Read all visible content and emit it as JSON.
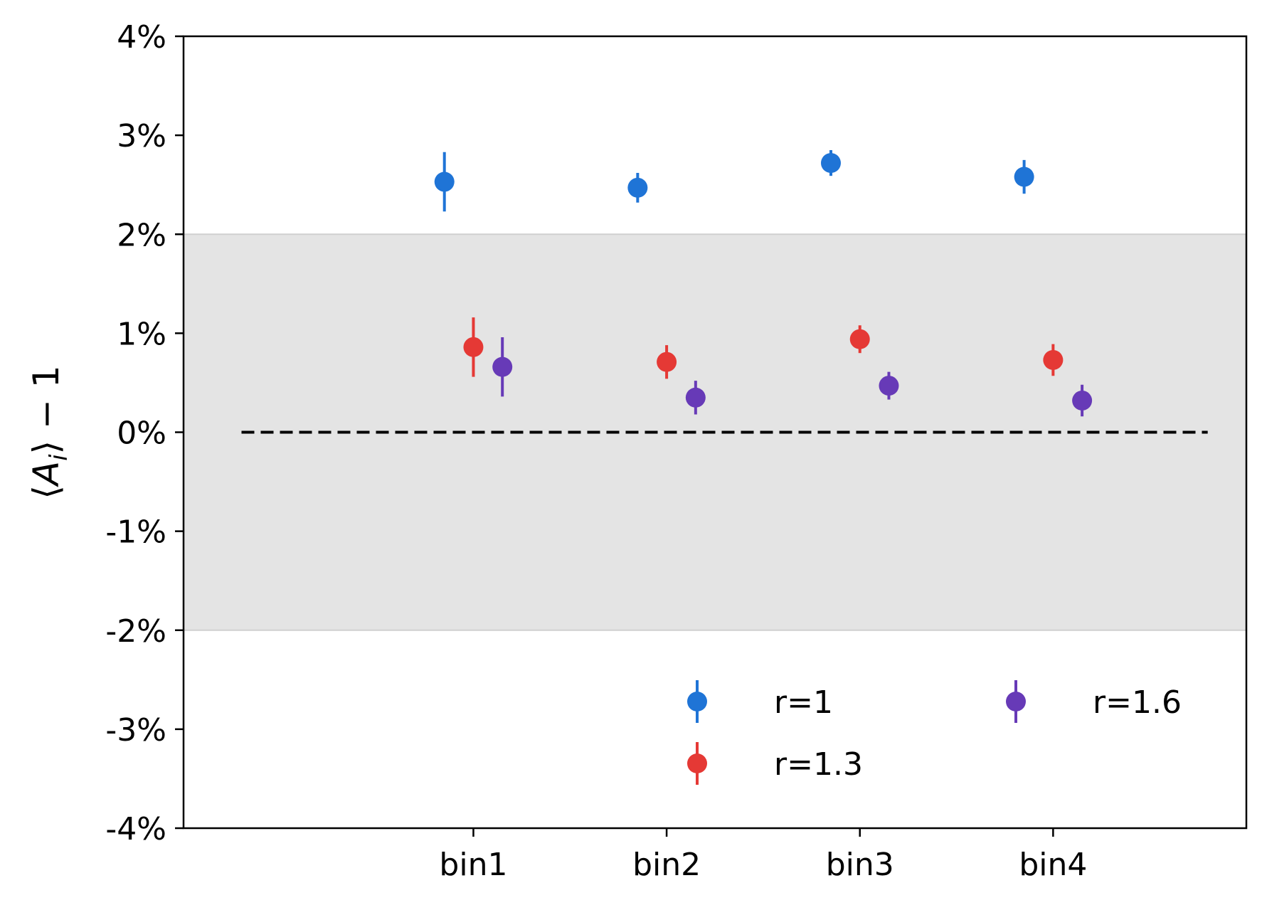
{
  "chart_data": {
    "type": "scatter",
    "categories": [
      "bin1",
      "bin2",
      "bin3",
      "bin4"
    ],
    "xlabel": "",
    "ylabel": "⟨A_i⟩ − 1",
    "ylim": [
      -4,
      4
    ],
    "y_unit": "%",
    "y_ticks": [
      "-4%",
      "-3%",
      "-2%",
      "-1%",
      "0%",
      "1%",
      "2%",
      "3%",
      "4%"
    ],
    "grid": false,
    "band": {
      "from": -2,
      "to": 2,
      "color": "#e4e4e4"
    },
    "reference_line": {
      "y": 0,
      "style": "dashed",
      "color": "#000000"
    },
    "legend_position": "lower-right",
    "series": [
      {
        "name": "r=1",
        "color": "#1f74d6",
        "offset": -0.15,
        "values": [
          2.53,
          2.47,
          2.72,
          2.58
        ],
        "errors": [
          0.3,
          0.15,
          0.13,
          0.17
        ]
      },
      {
        "name": "r=1.3",
        "color": "#e53935",
        "offset": 0,
        "values": [
          0.86,
          0.71,
          0.94,
          0.73
        ],
        "errors": [
          0.3,
          0.17,
          0.14,
          0.16
        ]
      },
      {
        "name": "r=1.6",
        "color": "#673ab7",
        "offset": 0.15,
        "values": [
          0.66,
          0.35,
          0.47,
          0.32
        ],
        "errors": [
          0.3,
          0.17,
          0.14,
          0.16
        ]
      }
    ]
  }
}
